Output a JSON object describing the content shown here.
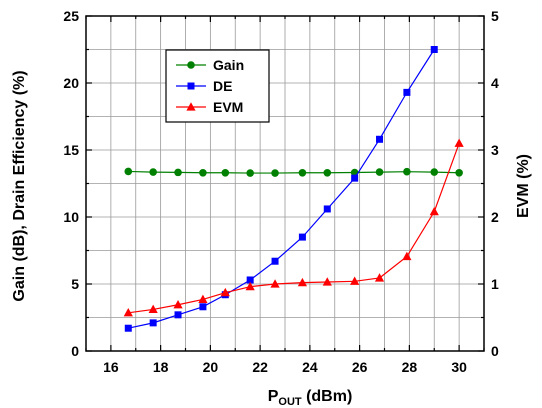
{
  "chart_data": {
    "type": "line",
    "xlabel_main": "P",
    "xlabel_sub": "OUT",
    "xlabel_rest": " (dBm)",
    "ylabel_left": "Gain (dB), Drain Efficiency (%)",
    "ylabel_right": "EVM (%)",
    "xlim": [
      15,
      31
    ],
    "ylim_left": [
      0,
      25
    ],
    "ylim_right": [
      0,
      5
    ],
    "xticks": [
      16,
      18,
      20,
      22,
      24,
      26,
      28,
      30
    ],
    "yticks_left": [
      0,
      5,
      10,
      15,
      20,
      25
    ],
    "yticks_right": [
      0,
      1,
      2,
      3,
      4,
      5
    ],
    "grid": true,
    "legend_position": "top-left",
    "series": [
      {
        "name": "Gain",
        "axis": "left",
        "color": "#008000",
        "marker": "circle",
        "x": [
          16.7,
          17.7,
          18.7,
          19.7,
          20.6,
          21.6,
          22.6,
          23.7,
          24.7,
          25.8,
          26.8,
          27.9,
          29.0,
          30.0
        ],
        "y": [
          13.4,
          13.35,
          13.33,
          13.3,
          13.3,
          13.28,
          13.28,
          13.3,
          13.3,
          13.32,
          13.35,
          13.38,
          13.35,
          13.3
        ]
      },
      {
        "name": "DE",
        "axis": "left",
        "color": "#0000ff",
        "marker": "square",
        "x": [
          16.7,
          17.7,
          18.7,
          19.7,
          20.6,
          21.6,
          22.6,
          23.7,
          24.7,
          25.8,
          26.8,
          27.9,
          29.0
        ],
        "y": [
          1.7,
          2.1,
          2.7,
          3.3,
          4.2,
          5.3,
          6.7,
          8.5,
          10.6,
          12.9,
          15.8,
          19.3,
          22.5
        ]
      },
      {
        "name": "EVM",
        "axis": "right",
        "color": "#ff0000",
        "marker": "triangle",
        "x": [
          16.7,
          17.7,
          18.7,
          19.7,
          20.6,
          21.6,
          22.6,
          23.7,
          24.7,
          25.8,
          26.8,
          27.9,
          29.0,
          30.0
        ],
        "y": [
          0.57,
          0.62,
          0.69,
          0.77,
          0.87,
          0.96,
          1.0,
          1.02,
          1.03,
          1.04,
          1.09,
          1.41,
          2.08,
          3.1
        ]
      }
    ]
  }
}
